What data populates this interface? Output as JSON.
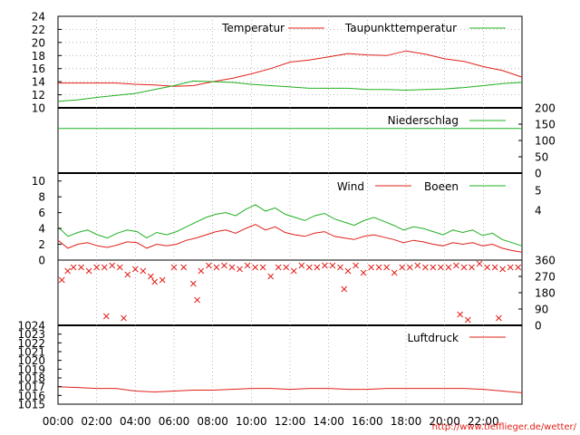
{
  "credit": "http://www.tiefflieger.de/wetter/",
  "colors": {
    "red": "#e0201a",
    "green": "#20b020",
    "grid": "#9a9a9a"
  },
  "time_ticks": [
    "00:00",
    "02:00",
    "04:00",
    "06:00",
    "08:00",
    "10:00",
    "12:00",
    "14:00",
    "16:00",
    "18:00",
    "20:00",
    "22:00"
  ],
  "chart_data": [
    {
      "type": "line",
      "x": [
        0,
        1,
        2,
        3,
        4,
        5,
        6,
        7,
        8,
        9,
        10,
        11,
        12,
        13,
        14,
        15,
        16,
        17,
        18,
        19,
        20,
        21,
        22,
        23,
        24
      ],
      "x_ticks": [
        "00:00",
        "02:00",
        "04:00",
        "06:00",
        "08:00",
        "10:00",
        "12:00",
        "14:00",
        "16:00",
        "18:00",
        "20:00",
        "22:00"
      ],
      "ylim": [
        10,
        24
      ],
      "yticks": [
        10,
        12,
        14,
        16,
        18,
        20,
        22,
        24
      ],
      "grid": true,
      "legend": "top-right",
      "series": [
        {
          "name": "Temperatur",
          "color": "#e0201a",
          "values": [
            13.8,
            13.8,
            13.8,
            13.8,
            13.6,
            13.5,
            13.3,
            13.4,
            14.0,
            14.5,
            15.2,
            16.0,
            17.0,
            17.3,
            17.8,
            18.3,
            18.1,
            18.0,
            18.7,
            18.2,
            17.5,
            17.1,
            16.3,
            15.7,
            14.7
          ]
        },
        {
          "name": "Taupunkttemperatur",
          "color": "#20b020",
          "values": [
            11.0,
            11.2,
            11.6,
            11.9,
            12.2,
            12.8,
            13.4,
            14.1,
            14.0,
            13.9,
            13.6,
            13.4,
            13.2,
            13.0,
            13.0,
            13.0,
            12.8,
            12.8,
            12.7,
            12.8,
            12.9,
            13.1,
            13.4,
            13.7,
            13.9
          ]
        }
      ]
    },
    {
      "type": "line",
      "ylim": [
        0,
        200
      ],
      "yticks": [
        0,
        50,
        100,
        150,
        200
      ],
      "legend": "top-right",
      "series": [
        {
          "name": "Niederschlag",
          "color": "#20b020",
          "values": [
            137,
            137
          ]
        }
      ]
    },
    {
      "type": "line",
      "ylim": [
        0,
        11
      ],
      "yticks": [
        0,
        2,
        4,
        6,
        8,
        10
      ],
      "y2_ticks": [
        4,
        5
      ],
      "legend": "top-right",
      "series": [
        {
          "name": "Wind",
          "color": "#e0201a",
          "values": [
            2.5,
            1.5,
            2.0,
            2.2,
            1.8,
            1.6,
            1.9,
            2.3,
            2.2,
            1.5,
            2.0,
            1.8,
            2.0,
            2.5,
            2.8,
            3.2,
            3.6,
            3.8,
            3.4,
            4.0,
            4.5,
            3.8,
            4.2,
            3.5,
            3.2,
            3.0,
            3.4,
            3.6,
            3.0,
            2.8,
            2.6,
            3.0,
            3.2,
            2.9,
            2.6,
            2.2,
            2.5,
            2.3,
            2.0,
            1.8,
            2.2,
            2.0,
            2.2,
            1.8,
            2.0,
            1.5,
            1.2,
            1.0
          ]
        },
        {
          "name": "Boeen",
          "color": "#20b020",
          "values": [
            4.2,
            3.0,
            3.5,
            3.8,
            3.2,
            2.8,
            3.4,
            3.8,
            3.6,
            2.8,
            3.5,
            3.2,
            3.6,
            4.2,
            4.8,
            5.4,
            5.8,
            6.0,
            5.6,
            6.4,
            7.0,
            6.2,
            6.6,
            5.8,
            5.4,
            5.0,
            5.6,
            5.9,
            5.2,
            4.8,
            4.4,
            5.0,
            5.4,
            4.9,
            4.4,
            3.8,
            4.2,
            4.0,
            3.6,
            3.2,
            3.8,
            3.5,
            3.8,
            3.1,
            3.4,
            2.6,
            2.2,
            1.8
          ]
        }
      ]
    },
    {
      "type": "scatter",
      "ylim": [
        0,
        360
      ],
      "yticks": [
        0,
        90,
        180,
        270,
        360
      ],
      "series": [
        {
          "name": "",
          "color": "#e0201a",
          "x": [
            0.2,
            0.5,
            0.8,
            1.2,
            1.6,
            2.0,
            2.4,
            2.8,
            3.2,
            3.6,
            4.0,
            4.4,
            4.8,
            5.0,
            5.4,
            6.0,
            6.5,
            7.0,
            7.4,
            7.8,
            8.2,
            8.6,
            9.0,
            9.4,
            9.8,
            10.2,
            10.6,
            11.0,
            11.4,
            11.8,
            12.2,
            12.6,
            13.0,
            13.4,
            13.8,
            14.2,
            14.6,
            15.0,
            15.4,
            15.8,
            16.2,
            16.6,
            17.0,
            17.4,
            17.8,
            18.2,
            18.6,
            19.0,
            19.4,
            19.8,
            20.2,
            20.6,
            21.0,
            21.4,
            21.8,
            22.2,
            22.6,
            23.0,
            23.4,
            23.8,
            2.5,
            3.4,
            7.2,
            14.8,
            20.8,
            21.2,
            22.8
          ],
          "y": [
            250,
            300,
            320,
            320,
            300,
            320,
            320,
            330,
            320,
            280,
            310,
            300,
            270,
            240,
            250,
            320,
            320,
            230,
            300,
            330,
            320,
            330,
            320,
            310,
            330,
            320,
            320,
            270,
            320,
            320,
            300,
            330,
            320,
            320,
            330,
            330,
            320,
            300,
            330,
            290,
            320,
            320,
            320,
            290,
            320,
            320,
            330,
            320,
            320,
            320,
            320,
            330,
            320,
            320,
            340,
            320,
            320,
            310,
            320,
            320,
            50,
            40,
            140,
            200,
            60,
            30,
            40
          ]
        }
      ]
    },
    {
      "type": "line",
      "ylim": [
        1015,
        1024
      ],
      "yticks": [
        1015,
        1016,
        1017,
        1018,
        1019,
        1020,
        1021,
        1022,
        1023,
        1024
      ],
      "legend": "top-right",
      "series": [
        {
          "name": "Luftdruck",
          "color": "#e0201a",
          "values": [
            1017.0,
            1016.9,
            1016.8,
            1016.8,
            1016.5,
            1016.4,
            1016.5,
            1016.6,
            1016.6,
            1016.7,
            1016.8,
            1016.8,
            1016.7,
            1016.8,
            1016.8,
            1016.7,
            1016.7,
            1016.8,
            1016.8,
            1016.8,
            1016.8,
            1016.8,
            1016.7,
            1016.5,
            1016.3
          ]
        }
      ]
    }
  ]
}
